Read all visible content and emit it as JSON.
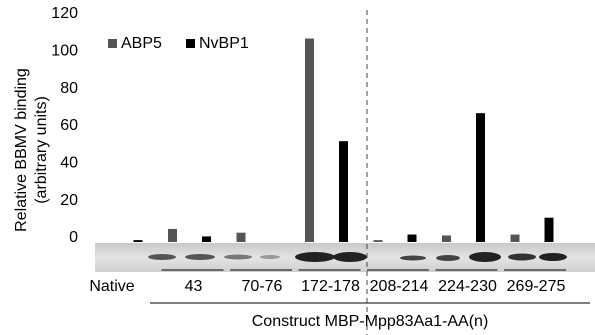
{
  "chart_data": {
    "type": "bar",
    "y_label": [
      "Relative BBMV binding",
      "(arbitrary units)"
    ],
    "x_label": "Construct MBP-Mpp83Aa1-AA(n)",
    "categories": [
      "Native",
      "43",
      "70-76",
      "172-178",
      "208-214",
      "224-230",
      "269-275"
    ],
    "series": [
      {
        "name": "ABP5",
        "color": "#555555",
        "values": [
          0,
          7,
          5,
          109,
          1,
          3.5,
          4
        ]
      },
      {
        "name": "NvBP1",
        "color": "#000000",
        "values": [
          1,
          3,
          0,
          54,
          4,
          69,
          13
        ]
      }
    ],
    "ylim": [
      0,
      120
    ],
    "yticks": [
      0,
      20,
      40,
      60,
      80,
      100,
      120
    ],
    "grid": false,
    "legend": "top-left"
  }
}
